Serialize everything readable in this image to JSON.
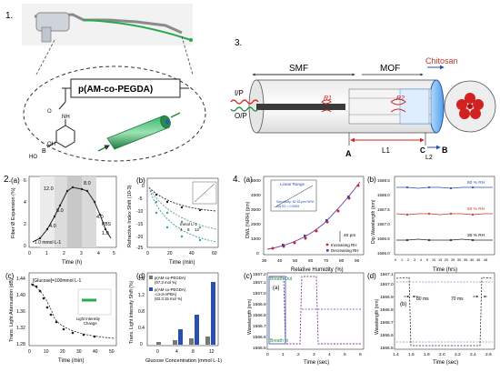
{
  "panel1": {
    "number": "1.",
    "polymer_label": "p(AM-co-PEGDA)",
    "boronic_label": "B",
    "oh_label": "OH",
    "ho_label": "HO",
    "nh_label": "NH"
  },
  "panel3": {
    "number": "3.",
    "smf_label": "SMF",
    "mof_label": "MOF",
    "chitosan_label": "Chitosan",
    "ip_label": "I/P",
    "op_label": "O/P",
    "r1_label": "R1",
    "r2_label": "R2",
    "a_label": "A",
    "b_label": "B",
    "c_label": "C",
    "l1_label": "L1",
    "l2_label": "L2"
  },
  "panel2": {
    "number": "2.",
    "a": {
      "tag": "(a)",
      "ylabel": "Fiber Ø Expansion (%)",
      "xlabel": "Time (h)",
      "annotations": [
        "12.0",
        "8.0",
        "8.0",
        "4.0",
        "4.0",
        "1.0 mmol L-1",
        "1.0",
        "PBS"
      ],
      "xticks": [
        "0",
        "1",
        "2",
        "3",
        "4",
        "5"
      ],
      "yticks": [
        "0",
        "2",
        "4",
        "6"
      ]
    },
    "b": {
      "tag": "(b)",
      "ylabel": "Refractive Index Shift (10-3)",
      "xlabel": "Time (min)",
      "legend": "mmol L-1",
      "legend_items": [
        "4",
        "8",
        "12"
      ],
      "xticks": [
        "0",
        "20",
        "40",
        "60"
      ],
      "yticks": [
        "0",
        "-5",
        "-10",
        "-15",
        "-20",
        "-25"
      ]
    },
    "c": {
      "tag": "(c)",
      "ylabel": "Trans. Light Attenuation (dB)",
      "xlabel": "Time (min)",
      "legend": "[Glucose]=100mmol L-1",
      "inner1": "Light Intensity",
      "inner2": "Change",
      "xticks": [
        "0",
        "10",
        "20",
        "30",
        "40",
        "50"
      ],
      "yticks": [
        "1.28",
        "1.32",
        "1.36",
        "1.40",
        "1.44"
      ]
    },
    "d": {
      "tag": "(d)",
      "ylabel": "Trans. Light Intensity Shift (%)",
      "xlabel": "Glucose Concentration (mmol L-1)",
      "legend1": "p(AM-co-PEGDA)",
      "legend1b": "(97.3 mol %)",
      "legend2": "p(AM-co-PEGDA)",
      "legend2b": "-co-3-APBA)",
      "legend2c": "(82.3:15 mol %)",
      "xticks": [
        "0",
        "4",
        "8",
        "12"
      ],
      "yticks": [
        "0",
        "0.4",
        "0.8",
        "1.2",
        "1.6"
      ]
    }
  },
  "panel4": {
    "number": "4.",
    "a": {
      "tag": "(a)",
      "ylabel": "DWL (%RH) (pm)",
      "xlabel": "Relative Humidity (%)",
      "inset_title": "Linear Range",
      "inset_sens": "Sensitivity: 82.53 pm/%RH",
      "inset_r2": "Adj R2 = 0.9959",
      "marker_note": "40 pm",
      "legend1": "Increasing RH",
      "legend2": "Decreasing RH",
      "xticks": [
        "30",
        "40",
        "50",
        "60",
        "70",
        "80",
        "90"
      ],
      "yticks": [
        "0",
        "1000",
        "2000",
        "3000",
        "4000",
        "5000"
      ]
    },
    "b": {
      "tag": "(b)",
      "ylabel": "Dip Wavelength (nm)",
      "xlabel": "Time (hrs)",
      "labels": [
        "80 % RH",
        "50 % RH",
        "30 % RH"
      ],
      "xticks": [
        "0",
        "1",
        "2",
        "3",
        "4",
        "5",
        "10",
        "15",
        "20",
        "25",
        "30",
        "35",
        "40",
        "45",
        "48"
      ],
      "yticks": [
        "1566.0",
        "1566.5",
        "1567.0",
        "1567.5",
        "1568.0",
        "1568.5"
      ]
    },
    "c": {
      "tag": "(c)",
      "inner_tag": "(a)",
      "ylabel": "Wavelength (nm)",
      "xlabel": "Time (sec)",
      "breath_out": "Breath Out",
      "breath_in": "Breath In",
      "xticks": [
        "0",
        "1",
        "2",
        "3",
        "4",
        "5",
        "6"
      ],
      "yticks": [
        "1566.5",
        "1566.6",
        "1566.7",
        "1566.8",
        "1566.9",
        "1567.0",
        "1567.1",
        "1567.2"
      ]
    },
    "d": {
      "tag": "(d)",
      "inner_tag": "(b)",
      "ylabel": "Wavelength (nm)",
      "xlabel": "Time (sec)",
      "left_ms": "80 ms",
      "right_ms": "70 ms",
      "xticks": [
        "1.4",
        "1.6",
        "1.8",
        "2.0",
        "2.2",
        "2.4",
        "2.6"
      ],
      "yticks": [
        "1566.5",
        "1566.6",
        "1566.7",
        "1566.8",
        "1566.9",
        "1567.0",
        "1567.1"
      ]
    }
  },
  "colors": {
    "green": "#1e8a3c",
    "blue": "#2a4fb0",
    "red": "#d32121",
    "teal": "#2ba3a3",
    "purple": "#7a3aa0"
  }
}
